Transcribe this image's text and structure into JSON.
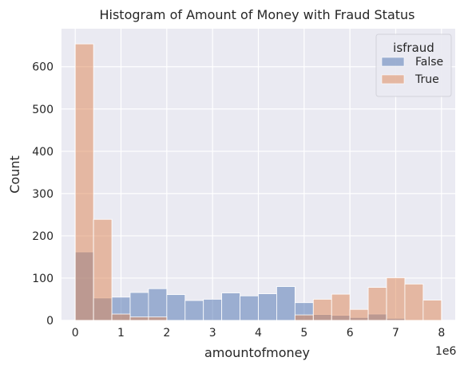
{
  "chart_data": {
    "type": "bar",
    "title": "Histogram of Amount of Money with Fraud Status",
    "xlabel": "amountofmoney",
    "ylabel": "Count",
    "x_offset_label": "1e6",
    "xlim": [
      -0.3,
      8.3
    ],
    "ylim": [
      0,
      690
    ],
    "x_ticks": [
      0,
      1,
      2,
      3,
      4,
      5,
      6,
      7,
      8
    ],
    "y_ticks": [
      0,
      100,
      200,
      300,
      400,
      500,
      600
    ],
    "grid": true,
    "legend_placement": "top-right",
    "legend_title": "isfraud",
    "bin_edges": [
      0,
      0.4,
      0.8,
      1.2,
      1.6,
      2.0,
      2.4,
      2.8,
      3.2,
      3.6,
      4.0,
      4.4,
      4.8,
      5.2,
      5.6,
      6.0,
      6.4,
      6.8,
      7.2,
      7.6,
      8.0
    ],
    "series": [
      {
        "name": "False",
        "color": "#4c72b0",
        "values": [
          162,
          53,
          55,
          66,
          75,
          61,
          47,
          50,
          65,
          58,
          63,
          80,
          42,
          14,
          12,
          7,
          15,
          5,
          0,
          0
        ]
      },
      {
        "name": "True",
        "color": "#dd8452",
        "values": [
          654,
          239,
          15,
          8,
          8,
          0,
          0,
          0,
          0,
          0,
          0,
          0,
          13,
          50,
          62,
          26,
          78,
          101,
          86,
          48
        ]
      }
    ]
  }
}
